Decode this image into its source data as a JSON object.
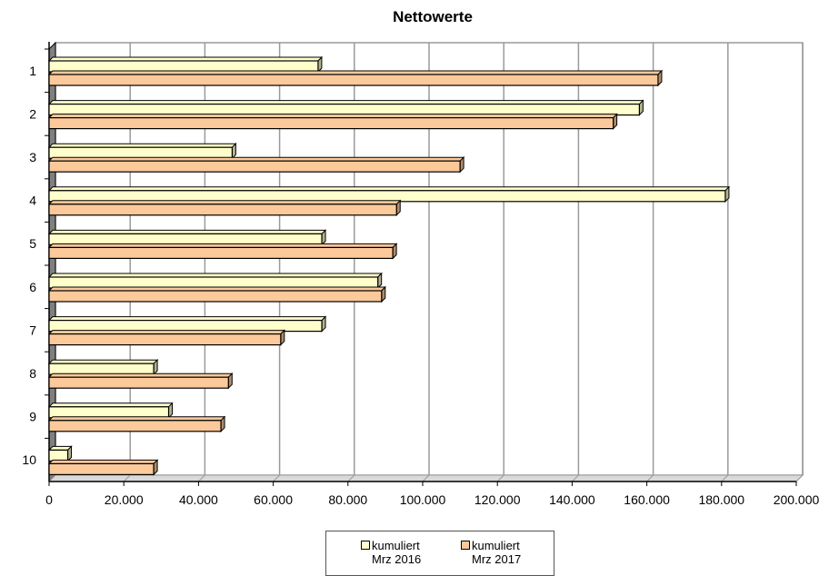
{
  "chart_data": {
    "type": "bar",
    "orientation": "horizontal",
    "title": "Nettowerte",
    "xlabel": "",
    "ylabel": "",
    "categories": [
      "1",
      "2",
      "3",
      "4",
      "5",
      "6",
      "7",
      "8",
      "9",
      "10"
    ],
    "series": [
      {
        "name": "kumuliert\nMrz 2016",
        "values": [
          72000,
          158000,
          49000,
          181000,
          73000,
          88000,
          73000,
          28000,
          32000,
          5000
        ],
        "color": "#ffffcc"
      },
      {
        "name": "kumuliert\nMrz 2017",
        "values": [
          163000,
          151000,
          110000,
          93000,
          92000,
          89000,
          62000,
          48000,
          46000,
          28000
        ],
        "color": "#fbc99a"
      }
    ],
    "xlim": [
      0,
      200000
    ],
    "xticks": [
      0,
      20000,
      40000,
      60000,
      80000,
      100000,
      120000,
      140000,
      160000,
      180000,
      200000
    ],
    "xtick_labels": [
      "0",
      "20.000",
      "40.000",
      "60.000",
      "80.000",
      "100.000",
      "120.000",
      "140.000",
      "160.000",
      "180.000",
      "200.000"
    ],
    "grid": true,
    "legend_position": "bottom",
    "style": "3d"
  }
}
